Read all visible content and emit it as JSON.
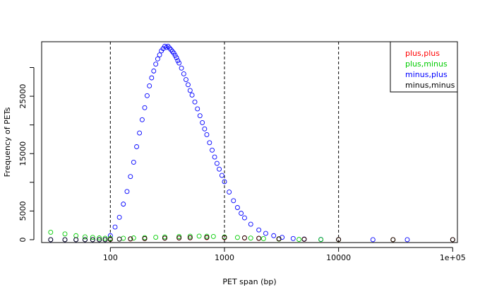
{
  "chart_data": {
    "type": "scatter",
    "title": "",
    "xlabel": "PET span (bp)",
    "ylabel": "Frequency of PETs",
    "x_scale": "log",
    "xlim": [
      25,
      110000
    ],
    "ylim": [
      -500,
      34500
    ],
    "x_ticks": [
      100,
      1000,
      10000,
      100000
    ],
    "x_tick_labels": [
      "100",
      "1000",
      "10000",
      "1e+05"
    ],
    "y_ticks": [
      0,
      5000,
      15000,
      25000
    ],
    "y_tick_labels": [
      "0",
      "5000",
      "15000",
      "25000"
    ],
    "y_minor_ticks": [
      10000,
      20000,
      30000
    ],
    "vlines": [
      100,
      1000,
      10000
    ],
    "grid": false,
    "legend_position": "top-right",
    "marker": "open-circle",
    "series": [
      {
        "name": "plus,plus",
        "color": "#ff0000"
      },
      {
        "name": "plus,minus",
        "color": "#00cc00"
      },
      {
        "name": "minus,plus",
        "color": "#0000ff"
      },
      {
        "name": "minus,minus",
        "color": "#000000"
      }
    ],
    "points": {
      "minus,plus": [
        [
          30,
          0
        ],
        [
          40,
          0
        ],
        [
          50,
          0
        ],
        [
          60,
          0
        ],
        [
          70,
          0
        ],
        [
          80,
          0
        ],
        [
          90,
          0
        ],
        [
          100,
          700
        ],
        [
          110,
          2200
        ],
        [
          120,
          3900
        ],
        [
          130,
          6200
        ],
        [
          140,
          8400
        ],
        [
          150,
          11000
        ],
        [
          160,
          13500
        ],
        [
          170,
          16200
        ],
        [
          180,
          18600
        ],
        [
          190,
          20900
        ],
        [
          200,
          23000
        ],
        [
          210,
          25100
        ],
        [
          220,
          26800
        ],
        [
          230,
          28200
        ],
        [
          240,
          29400
        ],
        [
          250,
          30600
        ],
        [
          260,
          31500
        ],
        [
          270,
          32200
        ],
        [
          280,
          32900
        ],
        [
          290,
          33300
        ],
        [
          300,
          33700
        ],
        [
          310,
          33500
        ],
        [
          320,
          33700
        ],
        [
          330,
          33400
        ],
        [
          340,
          33100
        ],
        [
          350,
          32800
        ],
        [
          360,
          32500
        ],
        [
          370,
          32100
        ],
        [
          380,
          31700
        ],
        [
          390,
          31200
        ],
        [
          400,
          30800
        ],
        [
          420,
          29900
        ],
        [
          440,
          28900
        ],
        [
          460,
          27900
        ],
        [
          480,
          27000
        ],
        [
          500,
          26000
        ],
        [
          520,
          25200
        ],
        [
          550,
          24000
        ],
        [
          580,
          22800
        ],
        [
          610,
          21600
        ],
        [
          640,
          20400
        ],
        [
          670,
          19300
        ],
        [
          700,
          18300
        ],
        [
          740,
          16900
        ],
        [
          780,
          15600
        ],
        [
          820,
          14400
        ],
        [
          860,
          13300
        ],
        [
          900,
          12300
        ],
        [
          950,
          11200
        ],
        [
          1000,
          10100
        ],
        [
          1100,
          8300
        ],
        [
          1200,
          6800
        ],
        [
          1300,
          5600
        ],
        [
          1400,
          4600
        ],
        [
          1500,
          3800
        ],
        [
          1700,
          2700
        ],
        [
          2000,
          1700
        ],
        [
          2300,
          1100
        ],
        [
          2700,
          700
        ],
        [
          3200,
          400
        ],
        [
          4000,
          200
        ],
        [
          5000,
          100
        ],
        [
          7000,
          50
        ],
        [
          10000,
          20
        ],
        [
          20000,
          0
        ],
        [
          40000,
          0
        ],
        [
          100000,
          0
        ]
      ],
      "plus,minus": [
        [
          30,
          1300
        ],
        [
          40,
          1000
        ],
        [
          50,
          700
        ],
        [
          60,
          500
        ],
        [
          70,
          400
        ],
        [
          80,
          300
        ],
        [
          90,
          250
        ],
        [
          100,
          220
        ],
        [
          130,
          250
        ],
        [
          160,
          300
        ],
        [
          200,
          350
        ],
        [
          250,
          420
        ],
        [
          300,
          480
        ],
        [
          400,
          550
        ],
        [
          500,
          600
        ],
        [
          600,
          620
        ],
        [
          700,
          600
        ],
        [
          800,
          560
        ],
        [
          1000,
          480
        ],
        [
          1300,
          380
        ],
        [
          1700,
          280
        ],
        [
          2200,
          180
        ],
        [
          3000,
          100
        ],
        [
          4500,
          40
        ],
        [
          7000,
          10
        ],
        [
          10000,
          0
        ],
        [
          30000,
          0
        ],
        [
          100000,
          0
        ]
      ],
      "minus,minus": [
        [
          30,
          0
        ],
        [
          40,
          0
        ],
        [
          50,
          0
        ],
        [
          60,
          0
        ],
        [
          70,
          0
        ],
        [
          80,
          0
        ],
        [
          90,
          0
        ],
        [
          100,
          50
        ],
        [
          120,
          100
        ],
        [
          150,
          150
        ],
        [
          200,
          200
        ],
        [
          300,
          280
        ],
        [
          400,
          330
        ],
        [
          500,
          360
        ],
        [
          700,
          400
        ],
        [
          1000,
          380
        ],
        [
          1500,
          320
        ],
        [
          2000,
          250
        ],
        [
          3000,
          160
        ],
        [
          5000,
          80
        ],
        [
          10000,
          30
        ],
        [
          30000,
          0
        ],
        [
          100000,
          0
        ]
      ],
      "plus,plus": [
        [
          100,
          40
        ],
        [
          150,
          120
        ],
        [
          200,
          180
        ],
        [
          300,
          260
        ],
        [
          400,
          300
        ],
        [
          500,
          330
        ],
        [
          700,
          360
        ],
        [
          1000,
          350
        ],
        [
          1500,
          290
        ],
        [
          2000,
          220
        ],
        [
          3000,
          140
        ],
        [
          5000,
          70
        ],
        [
          10000,
          20
        ],
        [
          30000,
          0
        ],
        [
          100000,
          0
        ]
      ]
    }
  }
}
